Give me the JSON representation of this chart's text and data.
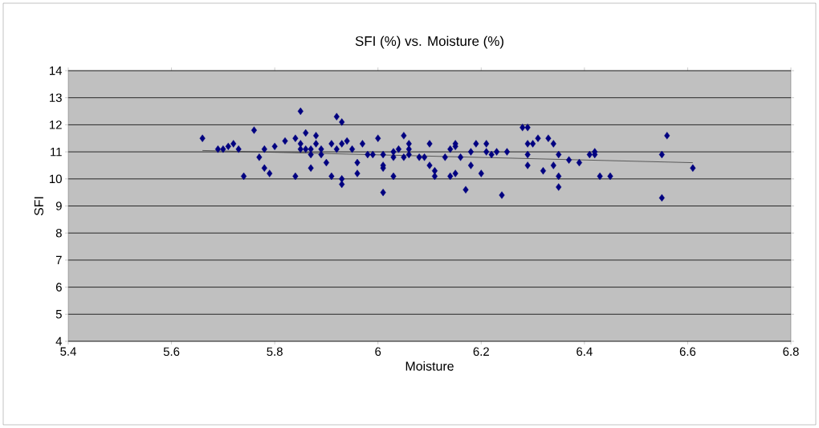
{
  "chart_data": {
    "type": "scatter",
    "title": "SFI (%) vs. Moisture (%)",
    "xlabel": "Moisture",
    "ylabel": "SFI",
    "xlim": [
      5.4,
      6.8
    ],
    "xticks": [
      5.4,
      5.6,
      5.8,
      6,
      6.2,
      6.4,
      6.6,
      6.8
    ],
    "ylim": [
      4,
      14
    ],
    "yticks": [
      4,
      5,
      6,
      7,
      8,
      9,
      10,
      11,
      12,
      13,
      14
    ],
    "grid": "y",
    "marker": "diamond",
    "series": [
      {
        "color": "#000080",
        "x": [
          5.66,
          5.69,
          5.7,
          5.72,
          5.71,
          5.73,
          5.74,
          5.76,
          5.77,
          5.78,
          5.78,
          5.79,
          5.8,
          5.82,
          5.84,
          5.85,
          5.84,
          5.85,
          5.85,
          5.86,
          5.86,
          5.87,
          5.87,
          5.88,
          5.88,
          5.89,
          5.9,
          5.91,
          5.91,
          5.92,
          5.93,
          5.93,
          5.94,
          5.92,
          5.93,
          5.93,
          5.96,
          5.96,
          5.95,
          5.97,
          5.98,
          5.87,
          5.89,
          6.0,
          5.99,
          6.01,
          6.01,
          6.01,
          6.01,
          6.03,
          6.03,
          6.03,
          6.04,
          6.05,
          6.06,
          6.06,
          6.05,
          6.06,
          6.08,
          6.09,
          6.1,
          6.1,
          6.11,
          6.11,
          6.13,
          6.14,
          6.15,
          6.15,
          6.16,
          6.14,
          6.15,
          6.17,
          6.18,
          6.18,
          6.19,
          6.2,
          6.21,
          6.21,
          6.22,
          6.23,
          6.24,
          6.25,
          6.28,
          6.29,
          6.29,
          6.29,
          6.29,
          6.3,
          6.31,
          6.33,
          6.34,
          6.32,
          6.34,
          6.35,
          6.35,
          6.35,
          6.37,
          6.39,
          6.41,
          6.42,
          6.42,
          6.43,
          6.45,
          6.55,
          6.56,
          6.55,
          6.61
        ],
        "values": [
          11.5,
          11.1,
          11.1,
          11.3,
          11.2,
          11.1,
          10.1,
          11.8,
          10.8,
          11.1,
          10.4,
          10.2,
          11.2,
          11.4,
          10.1,
          12.5,
          11.5,
          11.3,
          11.1,
          11.7,
          11.1,
          11.1,
          10.4,
          11.6,
          11.3,
          10.9,
          10.6,
          11.3,
          10.1,
          12.3,
          12.1,
          11.3,
          11.4,
          11.1,
          10.0,
          9.8,
          10.2,
          10.6,
          11.1,
          11.3,
          10.9,
          10.9,
          11.1,
          11.5,
          10.9,
          10.9,
          10.5,
          10.4,
          9.5,
          11.0,
          10.1,
          10.8,
          11.1,
          11.6,
          11.3,
          11.1,
          10.8,
          10.9,
          10.8,
          10.8,
          11.3,
          10.5,
          10.3,
          10.1,
          10.8,
          11.1,
          11.3,
          11.2,
          10.8,
          10.1,
          10.2,
          9.6,
          10.5,
          11.0,
          11.3,
          10.2,
          11.3,
          11.0,
          10.9,
          11.0,
          9.4,
          11.0,
          11.9,
          11.9,
          11.3,
          10.9,
          10.5,
          11.3,
          11.5,
          11.5,
          11.3,
          10.3,
          10.5,
          10.9,
          10.1,
          9.7,
          10.7,
          10.6,
          10.9,
          11.0,
          10.9,
          10.1,
          10.1,
          10.9,
          11.6,
          9.3,
          10.4
        ]
      },
      {
        "type": "line",
        "color": "#404040",
        "marker": "none",
        "x": [
          5.66,
          6.61
        ],
        "values": [
          11.05,
          10.6
        ]
      }
    ]
  }
}
